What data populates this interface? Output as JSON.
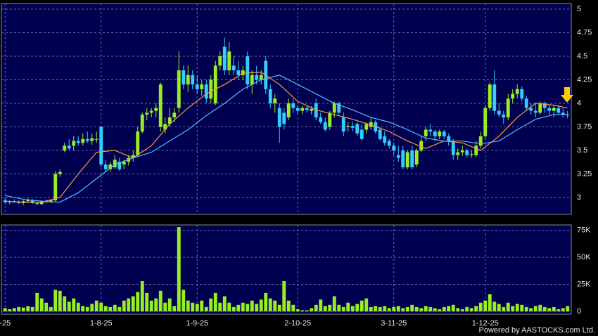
{
  "chart_data": {
    "type": "candlestick",
    "categories": [
      "-25",
      null,
      null,
      null,
      null,
      null,
      null,
      null,
      null,
      null,
      null,
      null,
      null,
      null,
      null,
      null,
      null,
      null,
      null,
      null,
      null,
      "1-8-25",
      null,
      null,
      null,
      null,
      null,
      null,
      null,
      null,
      null,
      null,
      null,
      null,
      null,
      null,
      null,
      null,
      null,
      null,
      null,
      null,
      "1-9-25",
      null,
      null,
      null,
      null,
      null,
      null,
      null,
      null,
      null,
      null,
      null,
      null,
      null,
      null,
      null,
      null,
      null,
      null,
      null,
      null,
      null,
      "2-10-25",
      null,
      null,
      null,
      null,
      null,
      null,
      null,
      null,
      null,
      null,
      null,
      null,
      null,
      null,
      null,
      null,
      null,
      null,
      null,
      null,
      "3-11-25",
      null,
      null,
      null,
      null,
      null,
      null,
      null,
      null,
      null,
      null,
      null,
      null,
      null,
      null,
      null,
      null,
      null,
      null,
      null,
      "1-12-25",
      null,
      null,
      null,
      null,
      null,
      null,
      null,
      null,
      null,
      null,
      null,
      null,
      null,
      null,
      null,
      null,
      null,
      null
    ],
    "ohlc": [
      [
        2.97,
        3.0,
        2.93,
        2.95
      ],
      [
        2.95,
        2.97,
        2.93,
        2.96
      ],
      [
        2.96,
        2.98,
        2.94,
        2.95
      ],
      [
        2.95,
        2.97,
        2.93,
        2.94
      ],
      [
        2.94,
        2.97,
        2.92,
        2.96
      ],
      [
        2.96,
        2.99,
        2.94,
        2.97
      ],
      [
        2.97,
        2.98,
        2.93,
        2.94
      ],
      [
        2.94,
        2.96,
        2.92,
        2.93
      ],
      [
        2.93,
        2.97,
        2.92,
        2.96
      ],
      [
        2.96,
        2.98,
        2.94,
        2.95
      ],
      [
        2.95,
        2.98,
        2.94,
        2.97
      ],
      [
        2.97,
        3.28,
        2.96,
        3.25
      ],
      [
        3.25,
        3.3,
        3.22,
        3.27
      ],
      [
        3.5,
        3.58,
        3.48,
        3.55
      ],
      [
        3.55,
        3.62,
        3.5,
        3.52
      ],
      [
        3.55,
        3.65,
        3.5,
        3.6
      ],
      [
        3.6,
        3.65,
        3.55,
        3.58
      ],
      [
        3.58,
        3.68,
        3.55,
        3.62
      ],
      [
        3.62,
        3.7,
        3.58,
        3.6
      ],
      [
        3.6,
        3.68,
        3.56,
        3.63
      ],
      [
        3.62,
        3.7,
        3.58,
        3.62
      ],
      [
        3.75,
        3.76,
        3.32,
        3.35
      ],
      [
        3.35,
        3.4,
        3.28,
        3.3
      ],
      [
        3.3,
        3.38,
        3.27,
        3.35
      ],
      [
        3.32,
        3.45,
        3.3,
        3.4
      ],
      [
        3.38,
        3.42,
        3.28,
        3.3
      ],
      [
        3.35,
        3.4,
        3.3,
        3.38
      ],
      [
        3.38,
        3.45,
        3.34,
        3.42
      ],
      [
        3.42,
        3.5,
        3.38,
        3.45
      ],
      [
        3.45,
        3.75,
        3.43,
        3.7
      ],
      [
        3.7,
        3.9,
        3.68,
        3.88
      ],
      [
        3.88,
        3.95,
        3.82,
        3.9
      ],
      [
        3.9,
        3.95,
        3.85,
        3.92
      ],
      [
        3.92,
        4.0,
        3.85,
        3.95
      ],
      [
        3.75,
        4.22,
        3.7,
        4.2
      ],
      [
        3.72,
        3.85,
        3.68,
        3.78
      ],
      [
        3.78,
        3.95,
        3.75,
        3.85
      ],
      [
        3.85,
        3.95,
        3.8,
        3.9
      ],
      [
        3.95,
        4.55,
        3.9,
        4.35
      ],
      [
        4.35,
        4.4,
        4.15,
        4.2
      ],
      [
        4.2,
        4.4,
        4.12,
        4.3
      ],
      [
        4.3,
        4.35,
        4.15,
        4.2
      ],
      [
        4.2,
        4.3,
        4.1,
        4.15
      ],
      [
        4.15,
        4.25,
        4.08,
        4.2
      ],
      [
        4.2,
        4.25,
        4.0,
        4.05
      ],
      [
        4.05,
        4.3,
        4.0,
        4.25
      ],
      [
        4.0,
        4.45,
        3.98,
        4.4
      ],
      [
        4.4,
        4.55,
        4.35,
        4.5
      ],
      [
        4.6,
        4.7,
        4.3,
        4.35
      ],
      [
        4.35,
        4.65,
        4.3,
        4.55
      ],
      [
        4.4,
        4.5,
        4.3,
        4.35
      ],
      [
        4.35,
        4.45,
        4.25,
        4.3
      ],
      [
        4.3,
        4.4,
        4.25,
        4.35
      ],
      [
        4.5,
        4.55,
        4.15,
        4.2
      ],
      [
        4.2,
        4.35,
        4.1,
        4.3
      ],
      [
        4.3,
        4.4,
        4.2,
        4.25
      ],
      [
        4.25,
        4.35,
        4.2,
        4.3
      ],
      [
        4.45,
        4.5,
        4.1,
        4.15
      ],
      [
        4.15,
        4.2,
        3.95,
        4.0
      ],
      [
        4.0,
        4.1,
        3.9,
        4.05
      ],
      [
        3.95,
        4.0,
        3.58,
        3.75
      ],
      [
        3.9,
        3.95,
        3.72,
        3.78
      ],
      [
        3.85,
        4.05,
        3.82,
        4.0
      ],
      [
        4.0,
        4.05,
        3.9,
        3.95
      ],
      [
        3.95,
        3.98,
        3.88,
        3.92
      ],
      [
        3.92,
        3.97,
        3.88,
        3.95
      ],
      [
        3.95,
        3.98,
        3.9,
        3.93
      ],
      [
        3.92,
        3.97,
        3.88,
        3.94
      ],
      [
        4.0,
        4.05,
        3.82,
        3.85
      ],
      [
        3.85,
        3.9,
        3.78,
        3.8
      ],
      [
        3.8,
        3.85,
        3.7,
        3.72
      ],
      [
        3.75,
        3.92,
        3.72,
        3.9
      ],
      [
        3.9,
        4.02,
        3.85,
        4.0
      ],
      [
        4.0,
        4.02,
        3.88,
        3.9
      ],
      [
        3.85,
        3.9,
        3.65,
        3.7
      ],
      [
        3.75,
        3.8,
        3.7,
        3.76
      ],
      [
        3.76,
        3.8,
        3.7,
        3.74
      ],
      [
        3.78,
        3.8,
        3.65,
        3.68
      ],
      [
        3.72,
        3.78,
        3.6,
        3.62
      ],
      [
        3.72,
        3.8,
        3.68,
        3.78
      ],
      [
        3.75,
        3.85,
        3.72,
        3.8
      ],
      [
        3.8,
        3.82,
        3.68,
        3.7
      ],
      [
        3.72,
        3.75,
        3.6,
        3.62
      ],
      [
        3.65,
        3.7,
        3.55,
        3.58
      ],
      [
        3.6,
        3.62,
        3.52,
        3.55
      ],
      [
        3.55,
        3.58,
        3.45,
        3.5
      ],
      [
        3.45,
        3.55,
        3.38,
        3.42
      ],
      [
        3.5,
        3.55,
        3.3,
        3.32
      ],
      [
        3.32,
        3.5,
        3.3,
        3.48
      ],
      [
        3.5,
        3.55,
        3.3,
        3.32
      ],
      [
        3.35,
        3.52,
        3.32,
        3.5
      ],
      [
        3.5,
        3.65,
        3.48,
        3.6
      ],
      [
        3.65,
        3.75,
        3.6,
        3.72
      ],
      [
        3.72,
        3.78,
        3.65,
        3.7
      ],
      [
        3.7,
        3.72,
        3.6,
        3.65
      ],
      [
        3.65,
        3.72,
        3.62,
        3.7
      ],
      [
        3.7,
        3.72,
        3.62,
        3.65
      ],
      [
        3.65,
        3.68,
        3.55,
        3.6
      ],
      [
        3.6,
        3.62,
        3.4,
        3.45
      ],
      [
        3.45,
        3.52,
        3.4,
        3.48
      ],
      [
        3.48,
        3.55,
        3.44,
        3.5
      ],
      [
        3.5,
        3.52,
        3.42,
        3.45
      ],
      [
        3.45,
        3.5,
        3.42,
        3.46
      ],
      [
        3.45,
        3.6,
        3.43,
        3.55
      ],
      [
        3.55,
        3.7,
        3.52,
        3.65
      ],
      [
        3.65,
        3.98,
        3.62,
        3.95
      ],
      [
        3.95,
        4.22,
        3.92,
        4.2
      ],
      [
        4.2,
        4.35,
        3.88,
        3.92
      ],
      [
        3.92,
        4.0,
        3.85,
        3.88
      ],
      [
        3.88,
        3.92,
        3.78,
        3.85
      ],
      [
        3.85,
        4.1,
        3.82,
        4.05
      ],
      [
        4.05,
        4.15,
        4.0,
        4.1
      ],
      [
        4.1,
        4.2,
        4.05,
        4.15
      ],
      [
        4.15,
        4.18,
        4.02,
        4.05
      ],
      [
        4.05,
        4.08,
        3.92,
        3.95
      ],
      [
        3.95,
        4.0,
        3.88,
        3.92
      ],
      [
        3.92,
        4.0,
        3.85,
        3.9
      ],
      [
        3.9,
        4.02,
        3.88,
        4.0
      ],
      [
        4.0,
        4.02,
        3.9,
        3.95
      ],
      [
        3.95,
        3.98,
        3.88,
        3.92
      ],
      [
        3.92,
        3.98,
        3.85,
        3.95
      ],
      [
        3.95,
        3.98,
        3.88,
        3.9
      ],
      [
        3.9,
        3.95,
        3.85,
        3.88
      ],
      [
        3.88,
        3.92,
        3.84,
        3.88
      ]
    ],
    "up_color": "#99ee22",
    "down_color": "#33ccff",
    "ylim": [
      2.82,
      5.06
    ],
    "yticks": [
      3,
      3.25,
      3.5,
      3.75,
      4,
      4.25,
      4.5,
      4.75,
      5
    ],
    "grid": true,
    "ma_lines": [
      {
        "color": "#ff9933",
        "x": [
          0,
          4,
          8,
          12,
          16,
          20,
          24,
          28,
          32,
          36,
          40,
          44,
          48,
          52,
          56,
          60,
          64,
          68,
          72,
          76,
          80,
          84,
          88,
          92,
          96,
          100,
          104,
          108,
          112,
          116,
          120,
          123
        ],
        "values": [
          2.96,
          2.95,
          2.95,
          3.0,
          3.25,
          3.48,
          3.5,
          3.42,
          3.55,
          3.78,
          3.95,
          4.1,
          4.2,
          4.32,
          4.33,
          4.2,
          4.02,
          3.93,
          3.88,
          3.83,
          3.77,
          3.7,
          3.6,
          3.52,
          3.6,
          3.58,
          3.5,
          3.65,
          3.85,
          4.0,
          3.98,
          3.95
        ]
      },
      {
        "color": "#55bbff",
        "x": [
          0,
          4,
          8,
          12,
          16,
          20,
          24,
          28,
          32,
          36,
          40,
          44,
          48,
          52,
          56,
          60,
          64,
          68,
          72,
          76,
          80,
          84,
          88,
          92,
          96,
          100,
          104,
          108,
          112,
          116,
          120,
          123
        ],
        "values": [
          3.02,
          2.98,
          2.96,
          2.95,
          3.05,
          3.2,
          3.35,
          3.42,
          3.48,
          3.6,
          3.72,
          3.87,
          4.0,
          4.15,
          4.25,
          4.3,
          4.2,
          4.1,
          4.0,
          3.93,
          3.85,
          3.8,
          3.72,
          3.63,
          3.6,
          3.6,
          3.57,
          3.6,
          3.72,
          3.83,
          3.88,
          3.88
        ]
      }
    ],
    "volume": {
      "type": "bar",
      "color": "#99ee22",
      "ylim": [
        0,
        80000
      ],
      "yticks": [
        0,
        {
          "value": 25000,
          "label": "25K"
        },
        {
          "value": 50000,
          "label": "50K"
        },
        {
          "value": 75000,
          "label": "75K"
        }
      ],
      "values": [
        3000,
        2000,
        3000,
        4000,
        3500,
        5000,
        4000,
        17000,
        12000,
        8000,
        4000,
        20000,
        19000,
        14000,
        9000,
        12000,
        8000,
        5000,
        4000,
        7000,
        10000,
        8000,
        5000,
        4000,
        6000,
        4000,
        10000,
        12000,
        14000,
        18000,
        28000,
        17000,
        10000,
        12000,
        19000,
        8000,
        12000,
        5000,
        78000,
        20000,
        10000,
        8000,
        7000,
        10000,
        4000,
        12000,
        17000,
        8000,
        14000,
        8000,
        4000,
        6000,
        8000,
        7000,
        10000,
        7000,
        11000,
        17000,
        12000,
        10000,
        6000,
        28000,
        10000,
        6000,
        2000,
        1000,
        1000,
        3000,
        6000,
        11000,
        5000,
        6000,
        14000,
        6000,
        4000,
        8000,
        5000,
        7000,
        10000,
        12000,
        4000,
        5000,
        4000,
        5000,
        3000,
        4000,
        5000,
        3000,
        4000,
        6000,
        4000,
        3000,
        5000,
        4000,
        3000,
        2000,
        4000,
        5000,
        6000,
        3000,
        2000,
        4000,
        3000,
        5000,
        8000,
        10000,
        16000,
        9000,
        7000,
        4000,
        8000,
        5000,
        7000,
        6000,
        4000,
        3000,
        5000,
        6000,
        4000,
        3000,
        4000,
        2000,
        3000,
        5000
      ]
    },
    "source": "Powered by AASTOCKS.com Ltd."
  }
}
